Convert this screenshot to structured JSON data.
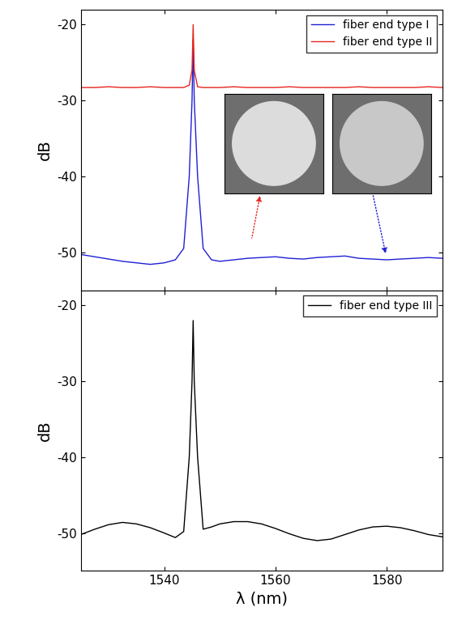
{
  "chart_data": [
    {
      "type": "line",
      "y_label": "dB",
      "x": [
        1525,
        1527.5,
        1530,
        1532.5,
        1535,
        1537.5,
        1540,
        1542,
        1543.5,
        1544.5,
        1545,
        1545.2,
        1545.4,
        1546,
        1547,
        1548.5,
        1550,
        1552.5,
        1555,
        1557.5,
        1560,
        1562.5,
        1565,
        1567.5,
        1570,
        1572.5,
        1575,
        1577.5,
        1580,
        1582.5,
        1585,
        1587.5,
        1590
      ],
      "series": [
        {
          "name": "fiber end type I",
          "color": "#1f1fd6",
          "values": [
            -50.3,
            -50.6,
            -50.9,
            -51.2,
            -51.4,
            -51.6,
            -51.4,
            -51.0,
            -49.5,
            -40,
            -30,
            -22,
            -30,
            -40,
            -49.5,
            -51.0,
            -51.2,
            -51.0,
            -50.8,
            -50.7,
            -50.6,
            -50.8,
            -50.9,
            -50.7,
            -50.6,
            -50.5,
            -50.8,
            -50.9,
            -51.0,
            -50.9,
            -50.8,
            -50.7,
            -50.8
          ]
        },
        {
          "name": "fiber end type II",
          "color": "#e8261f",
          "values": [
            -28.3,
            -28.3,
            -28.2,
            -28.3,
            -28.3,
            -28.2,
            -28.3,
            -28.3,
            -28.3,
            -28.0,
            -26,
            -20,
            -26,
            -28.2,
            -28.3,
            -28.3,
            -28.3,
            -28.2,
            -28.3,
            -28.3,
            -28.3,
            -28.2,
            -28.3,
            -28.3,
            -28.3,
            -28.3,
            -28.2,
            -28.3,
            -28.3,
            -28.3,
            -28.3,
            -28.2,
            -28.3
          ]
        }
      ],
      "xlim": [
        1525,
        1590
      ],
      "xticks": [
        1540,
        1560,
        1580
      ],
      "ylim": [
        -55,
        -18
      ],
      "yticks": [
        -50,
        -40,
        -30,
        -20
      ],
      "legend": "upper right",
      "tick_labels": "y"
    },
    {
      "type": "line",
      "x_label": "λ (nm)",
      "y_label": "dB",
      "x": [
        1525,
        1527.5,
        1530,
        1532.5,
        1535,
        1537.5,
        1540,
        1542,
        1543.5,
        1544.5,
        1545,
        1545.2,
        1545.4,
        1546,
        1547,
        1548.5,
        1550,
        1552.5,
        1555,
        1557.5,
        1560,
        1562.5,
        1565,
        1567.5,
        1570,
        1572.5,
        1575,
        1577.5,
        1580,
        1582.5,
        1585,
        1587.5,
        1590
      ],
      "series": [
        {
          "name": "fiber end type III",
          "color": "#000000",
          "values": [
            -50.2,
            -49.5,
            -48.9,
            -48.6,
            -48.8,
            -49.3,
            -50.0,
            -50.6,
            -49.8,
            -40,
            -30,
            -22,
            -30,
            -40,
            -49.5,
            -49.2,
            -48.8,
            -48.5,
            -48.5,
            -48.8,
            -49.4,
            -50.1,
            -50.7,
            -51.0,
            -50.8,
            -50.2,
            -49.6,
            -49.2,
            -49.1,
            -49.3,
            -49.7,
            -50.2,
            -50.5
          ]
        }
      ],
      "xlim": [
        1525,
        1590
      ],
      "xticks": [
        1540,
        1560,
        1580
      ],
      "ylim": [
        -55,
        -18
      ],
      "yticks": [
        -50,
        -40,
        -30,
        -20
      ],
      "legend": "upper right"
    }
  ]
}
